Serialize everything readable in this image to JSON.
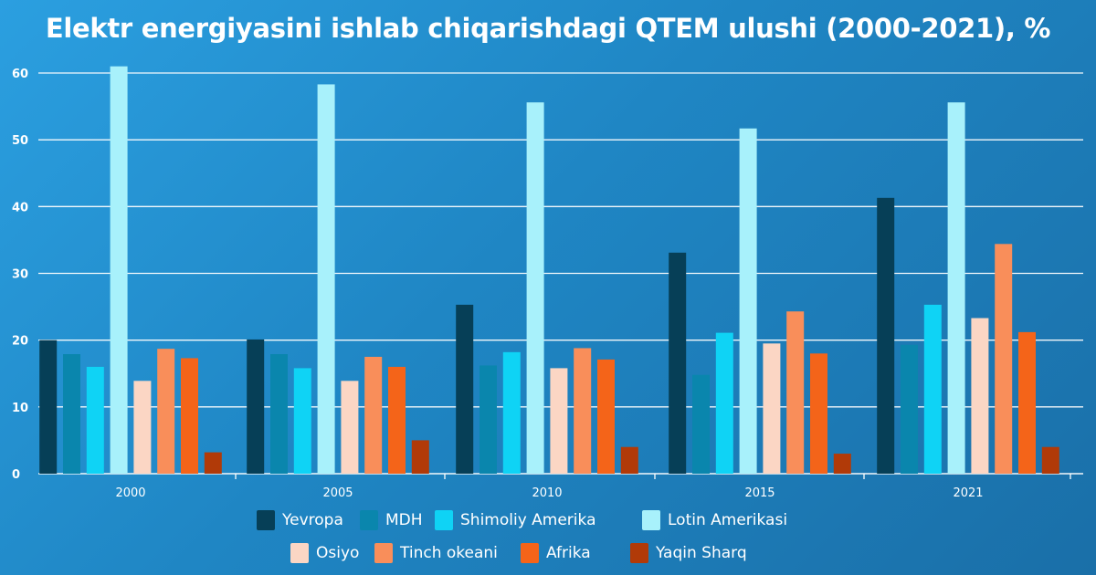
{
  "title": "Elektr energiyasini ishlab chiqarishdagi QTEM ulushi (2000-2021), %",
  "chart_data": {
    "type": "bar",
    "title": "Elektr energiyasini ishlab chiqarishdagi QTEM ulushi (2000-2021), %",
    "xlabel": "",
    "ylabel": "",
    "ylim": [
      0,
      60
    ],
    "yticks": [
      0,
      10,
      20,
      30,
      40,
      50,
      60
    ],
    "grid": true,
    "legend_position": "bottom",
    "categories": [
      "2000",
      "2005",
      "2010",
      "2015",
      "2021"
    ],
    "series": [
      {
        "name": "Yevropa",
        "color": "#063f57",
        "values": [
          20.0,
          20.1,
          25.3,
          33.1,
          41.3
        ]
      },
      {
        "name": "MDH",
        "color": "#0a86ad",
        "values": [
          17.9,
          17.9,
          16.2,
          14.8,
          19.3
        ]
      },
      {
        "name": "Shimoliy Amerika",
        "color": "#0fd3f5",
        "values": [
          16.0,
          15.8,
          18.2,
          21.1,
          25.3
        ]
      },
      {
        "name": "Lotin Amerikasi",
        "color": "#a8f1fb",
        "values": [
          61.0,
          58.3,
          55.6,
          51.7,
          55.6
        ]
      },
      {
        "name": "Osiyo",
        "color": "#fbd6c4",
        "values": [
          13.9,
          13.9,
          15.8,
          19.5,
          23.3
        ]
      },
      {
        "name": "Tinch okeani",
        "color": "#f98e5a",
        "values": [
          18.7,
          17.5,
          18.8,
          24.3,
          34.4
        ]
      },
      {
        "name": "Afrika",
        "color": "#f46419",
        "values": [
          17.3,
          16.0,
          17.1,
          18.0,
          21.2
        ]
      },
      {
        "name": "Yaqin Sharq",
        "color": "#b13a08",
        "values": [
          3.2,
          5.0,
          4.0,
          3.0,
          4.0
        ]
      }
    ]
  }
}
